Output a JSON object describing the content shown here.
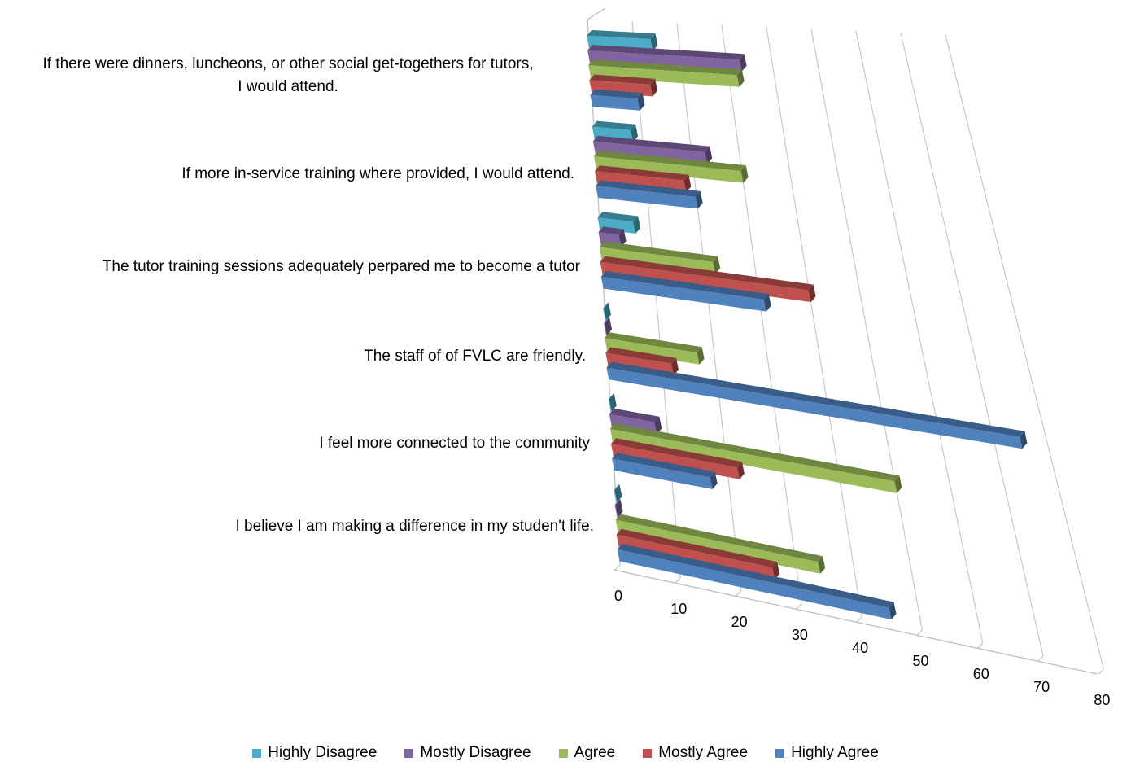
{
  "chart_data": {
    "type": "bar",
    "orientation": "horizontal",
    "style": "3d-perspective",
    "categories": [
      "I believe I am making a difference in my studen't life.",
      "I feel more connected to the community",
      "The staff of of FVLC are friendly.",
      "The tutor training sessions adequately perpared me to become a tutor",
      "If more in-service training where provided, I would attend.",
      "If there were dinners, luncheons, or other social get-togethers for tutors, I would attend."
    ],
    "category_lines": [
      [
        "I believe I am making a difference in my studen't life."
      ],
      [
        "I feel more connected to the community"
      ],
      [
        "The staff of of FVLC are friendly."
      ],
      [
        "The tutor training sessions adequately perpared me to become a tutor"
      ],
      [
        "If more in-service training where provided, I would attend."
      ],
      [
        "If there were dinners, luncheons, or other social get-togethers for tutors,",
        "I would attend."
      ]
    ],
    "series": [
      {
        "name": "Highly Agree",
        "color": "#4F81BD",
        "values": [
          45,
          17,
          75,
          31,
          20,
          10
        ]
      },
      {
        "name": "Mostly Agree",
        "color": "#C0504D",
        "values": [
          26,
          22,
          12,
          40,
          18,
          13
        ]
      },
      {
        "name": "Agree",
        "color": "#9BBB59",
        "values": [
          34,
          50,
          17,
          22,
          30,
          32
        ]
      },
      {
        "name": "Mostly Disagree",
        "color": "#8064A2",
        "values": [
          0,
          8,
          0,
          4,
          23,
          33
        ]
      },
      {
        "name": "Highly Disagree",
        "color": "#4BACC6",
        "values": [
          0,
          0,
          0,
          7,
          8,
          14
        ]
      }
    ],
    "xlim": [
      0,
      80
    ],
    "xticks": [
      "0",
      "10",
      "20",
      "30",
      "40",
      "50",
      "60",
      "70",
      "80"
    ],
    "legend_position": "bottom",
    "grid": true
  }
}
